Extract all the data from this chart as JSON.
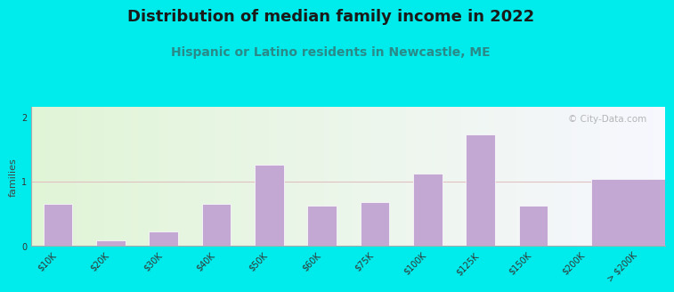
{
  "title": "Distribution of median family income in 2022",
  "subtitle": "Hispanic or Latino residents in Newcastle, ME",
  "watermark": "© City-Data.com",
  "ylabel": "families",
  "background_outer": "#00ECEC",
  "bar_color": "#C4A8D4",
  "bar_edge_color": "#FFFFFF",
  "categories": [
    "$10K",
    "$20K",
    "$30K",
    "$40K",
    "$50K",
    "$60K",
    "$75K",
    "$100K",
    "$125K",
    "$150K",
    "$200K",
    "> $200K"
  ],
  "values": [
    0.65,
    0.08,
    0.22,
    0.65,
    1.25,
    0.62,
    0.68,
    1.12,
    1.72,
    0.62,
    0.0,
    1.03
  ],
  "ylim": [
    0,
    2.15
  ],
  "yticks": [
    0,
    1,
    2
  ],
  "grid_color": "#E0C0C0",
  "title_fontsize": 13,
  "subtitle_fontsize": 10,
  "ylabel_fontsize": 8,
  "tick_fontsize": 7,
  "bar_width": 0.6
}
